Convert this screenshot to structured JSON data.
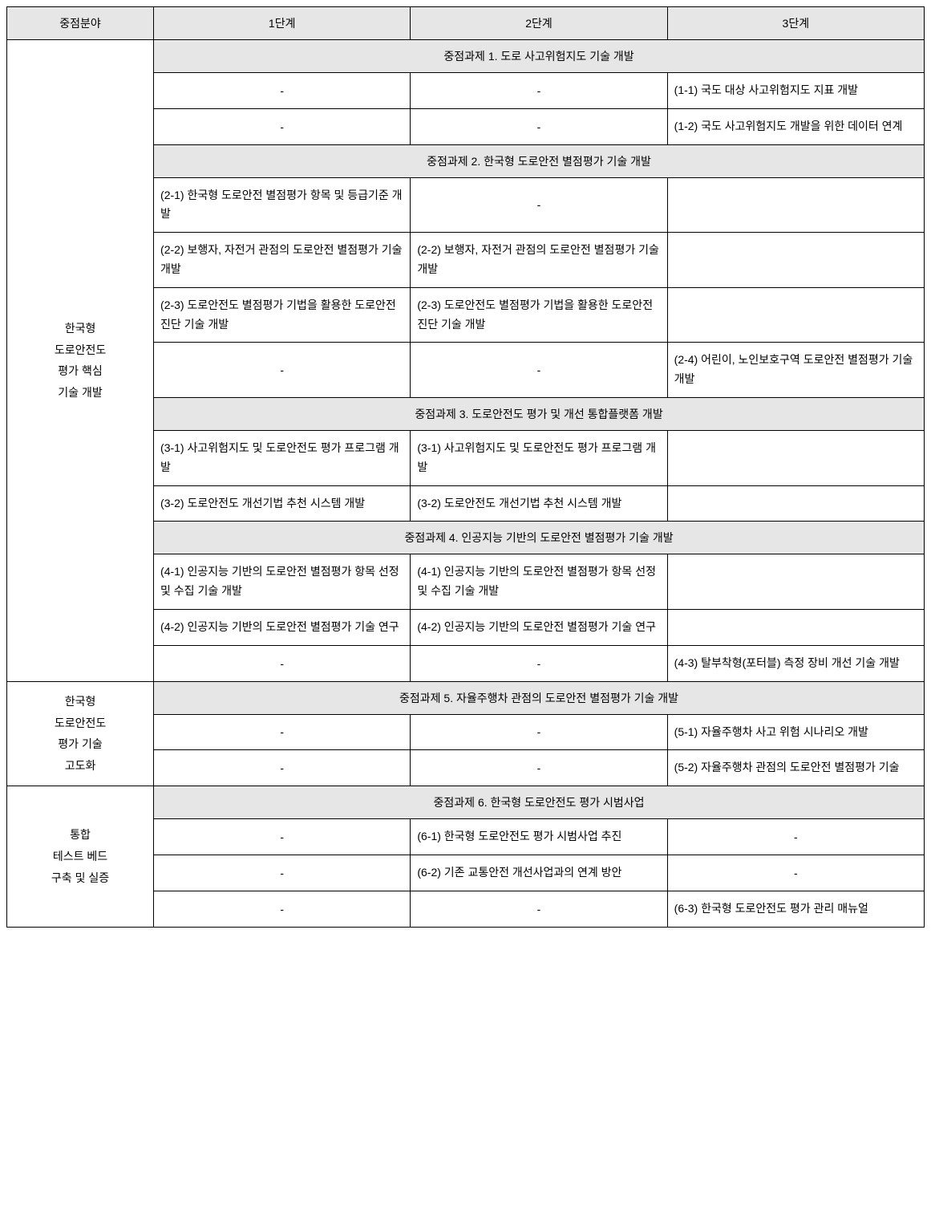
{
  "table": {
    "headers": [
      "중점분야",
      "1단계",
      "2단계",
      "3단계"
    ],
    "focus1": "한국형\n도로안전도\n평가 핵심\n기술 개발",
    "focus2": "한국형\n도로안전도\n평가 기술\n고도화",
    "focus3": "통합\n테스트 베드\n구축 및 실증",
    "dash": "-",
    "topic1": "중점과제 1. 도로 사고위험지도 기술 개발",
    "topic2": "중점과제 2. 한국형 도로안전 별점평가 기술 개발",
    "topic3": "중점과제 3. 도로안전도 평가 및 개선 통합플랫폼 개발",
    "topic4": "중점과제 4. 인공지능 기반의 도로안전 별점평가 기술 개발",
    "topic5": "중점과제 5. 자율주행차 관점의 도로안전 별점평가 기술 개발",
    "topic6": "중점과제 6. 한국형 도로안전도 평가 시범사업",
    "r1_3": "(1-1) 국도 대상 사고위험지도 지표 개발",
    "r2_3": "(1-2) 국도 사고위험지도 개발을 위한 데이터 연계",
    "r3_1": "(2-1) 한국형 도로안전 별점평가 항목 및 등급기준 개발",
    "r4_1": "(2-2) 보행자, 자전거 관점의 도로안전 별점평가 기술 개발",
    "r4_2": "(2-2) 보행자, 자전거 관점의 도로안전 별점평가 기술 개발",
    "r5_1": "(2-3) 도로안전도 별점평가 기법을 활용한 도로안전진단 기술 개발",
    "r5_2": "(2-3) 도로안전도 별점평가 기법을 활용한 도로안전진단 기술 개발",
    "r6_3": "(2-4) 어린이, 노인보호구역 도로안전 별점평가 기술 개발",
    "r7_1": "(3-1) 사고위험지도 및 도로안전도 평가 프로그램 개발",
    "r7_2": "(3-1) 사고위험지도 및 도로안전도 평가 프로그램 개발",
    "r8_1": "(3-2) 도로안전도 개선기법 추천 시스템 개발",
    "r8_2": "(3-2) 도로안전도 개선기법 추천 시스템 개발",
    "r9_1": "(4-1) 인공지능 기반의 도로안전 별점평가 항목 선정 및 수집 기술 개발",
    "r9_2": "(4-1) 인공지능 기반의 도로안전 별점평가 항목 선정 및 수집 기술 개발",
    "r10_1": "(4-2) 인공지능 기반의 도로안전 별점평가 기술 연구",
    "r10_2": "(4-2) 인공지능 기반의 도로안전 별점평가 기술 연구",
    "r11_3": "(4-3) 탈부착형(포터블) 측정 장비 개선 기술 개발",
    "r12_3": "(5-1) 자율주행차 사고 위험 시나리오 개발",
    "r13_3": "(5-2) 자율주행차 관점의 도로안전 별점평가 기술",
    "r14_2": "(6-1) 한국형 도로안전도 평가 시범사업 추진",
    "r15_2": "(6-2) 기존 교통안전 개선사업과의 연계 방안",
    "r16_3": "(6-3) 한국형 도로안전도 평가 관리 매뉴얼"
  }
}
